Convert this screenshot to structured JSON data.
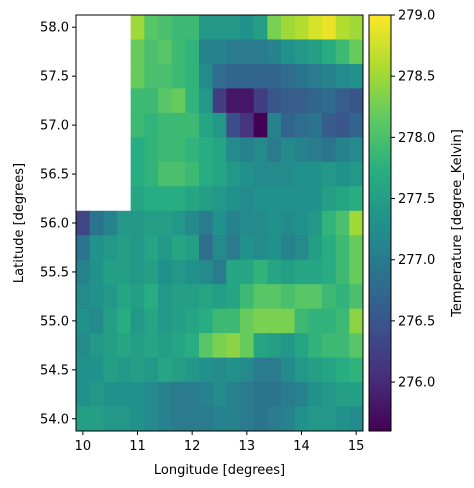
{
  "chart_data": {
    "type": "heatmap",
    "title": "",
    "xlabel": "Longitude [degrees]",
    "ylabel": "Latitude [degrees]",
    "colorbar_label": "Temperature [degree_Kelvin]",
    "colormap": "viridis",
    "xlim": [
      9.875,
      15.125
    ],
    "ylim": [
      53.875,
      58.125
    ],
    "xticks": [
      10,
      11,
      12,
      13,
      14,
      15
    ],
    "yticks": [
      54.0,
      54.5,
      55.0,
      55.5,
      56.0,
      56.5,
      57.0,
      57.5,
      58.0
    ],
    "colorbar_range": [
      275.6,
      279.0
    ],
    "colorbar_ticks": [
      276.0,
      276.5,
      277.0,
      277.5,
      278.0,
      278.5,
      279.0
    ],
    "lon": [
      10.0,
      10.25,
      10.5,
      10.75,
      11.0,
      11.25,
      11.5,
      11.75,
      12.0,
      12.25,
      12.5,
      12.75,
      13.0,
      13.25,
      13.5,
      13.75,
      14.0,
      14.25,
      14.5,
      14.75,
      15.0
    ],
    "lat": [
      58.0,
      57.75,
      57.5,
      57.25,
      57.0,
      56.75,
      56.5,
      56.25,
      56.0,
      55.75,
      55.5,
      55.25,
      55.0,
      54.75,
      54.5,
      54.25,
      54.0
    ],
    "values": [
      [
        null,
        null,
        null,
        null,
        278.5,
        278.1,
        278.0,
        277.9,
        277.9,
        277.4,
        277.4,
        277.4,
        277.3,
        277.5,
        278.3,
        278.5,
        278.6,
        278.8,
        278.9,
        278.6,
        278.5
      ],
      [
        null,
        null,
        null,
        null,
        278.2,
        278.0,
        278.1,
        277.9,
        277.8,
        277.1,
        277.1,
        277.0,
        277.0,
        277.0,
        277.1,
        277.3,
        277.4,
        277.5,
        277.7,
        277.9,
        278.2
      ],
      [
        null,
        null,
        null,
        null,
        278.2,
        278.0,
        278.0,
        277.9,
        277.8,
        277.2,
        276.8,
        276.7,
        276.7,
        276.7,
        276.7,
        276.8,
        276.9,
        277.0,
        277.1,
        277.2,
        277.3
      ],
      [
        null,
        null,
        null,
        null,
        277.9,
        277.9,
        278.1,
        278.2,
        277.8,
        277.4,
        276.2,
        275.8,
        275.8,
        276.2,
        276.5,
        276.6,
        276.6,
        276.7,
        276.8,
        276.6,
        276.5
      ],
      [
        null,
        null,
        null,
        null,
        277.9,
        277.8,
        277.9,
        277.9,
        277.9,
        277.6,
        277.4,
        276.4,
        276.1,
        275.6,
        277.1,
        276.7,
        276.8,
        276.9,
        276.6,
        276.5,
        276.7
      ],
      [
        null,
        null,
        null,
        null,
        277.7,
        277.8,
        277.9,
        277.9,
        277.8,
        277.7,
        277.6,
        277.2,
        277.1,
        277.2,
        277.0,
        277.2,
        277.1,
        277.0,
        276.9,
        277.1,
        277.2
      ],
      [
        null,
        null,
        null,
        null,
        277.7,
        277.8,
        278.0,
        278.0,
        277.9,
        277.7,
        277.6,
        277.4,
        277.3,
        277.2,
        277.2,
        277.2,
        277.3,
        277.3,
        277.4,
        277.3,
        277.4
      ],
      [
        null,
        null,
        null,
        null,
        277.6,
        277.7,
        277.7,
        277.7,
        277.6,
        277.5,
        277.4,
        277.3,
        277.2,
        277.3,
        277.3,
        277.3,
        277.3,
        277.3,
        277.5,
        277.6,
        277.7
      ],
      [
        276.3,
        276.9,
        277.1,
        277.4,
        277.4,
        277.5,
        277.5,
        277.4,
        277.2,
        277.0,
        277.3,
        277.1,
        277.2,
        277.2,
        277.3,
        277.2,
        277.3,
        277.4,
        277.8,
        278.0,
        278.5
      ],
      [
        276.9,
        277.3,
        277.4,
        277.5,
        277.4,
        277.6,
        277.4,
        277.6,
        277.5,
        276.8,
        277.2,
        277.0,
        277.3,
        277.2,
        277.3,
        277.1,
        277.2,
        277.5,
        277.7,
        277.9,
        278.2
      ],
      [
        277.1,
        277.3,
        277.5,
        277.5,
        277.4,
        277.5,
        277.3,
        277.4,
        277.3,
        277.2,
        277.0,
        277.6,
        277.6,
        277.8,
        277.6,
        277.5,
        277.6,
        277.6,
        277.7,
        277.9,
        278.2
      ],
      [
        277.2,
        277.3,
        277.4,
        277.6,
        277.5,
        277.7,
        277.4,
        277.5,
        277.5,
        277.6,
        277.5,
        277.6,
        277.9,
        278.1,
        278.1,
        278.0,
        278.1,
        278.1,
        277.9,
        277.8,
        278.0
      ],
      [
        277.3,
        277.2,
        277.5,
        277.7,
        277.4,
        277.6,
        277.4,
        277.5,
        277.6,
        277.7,
        277.9,
        277.9,
        278.2,
        278.3,
        278.3,
        278.3,
        277.9,
        277.8,
        277.8,
        277.9,
        278.4
      ],
      [
        277.2,
        277.4,
        277.5,
        277.6,
        277.5,
        277.6,
        277.5,
        277.6,
        277.7,
        278.1,
        278.3,
        278.4,
        278.2,
        277.6,
        277.5,
        277.4,
        277.6,
        277.8,
        277.9,
        277.9,
        278.1
      ],
      [
        277.3,
        277.3,
        277.5,
        277.4,
        277.5,
        277.4,
        277.6,
        277.5,
        277.4,
        277.3,
        277.2,
        277.3,
        277.2,
        277.0,
        277.0,
        277.2,
        277.4,
        277.5,
        277.6,
        277.7,
        277.8
      ],
      [
        277.3,
        277.4,
        277.3,
        277.3,
        277.3,
        277.2,
        277.1,
        277.0,
        277.0,
        277.1,
        277.2,
        277.1,
        277.0,
        276.9,
        276.9,
        277.0,
        277.1,
        277.3,
        277.4,
        277.5,
        277.5
      ],
      [
        277.5,
        277.5,
        277.4,
        277.4,
        277.3,
        277.2,
        277.1,
        277.0,
        277.0,
        277.0,
        277.1,
        277.1,
        277.0,
        276.9,
        277.0,
        277.1,
        277.3,
        277.4,
        277.4,
        277.3,
        277.2
      ]
    ]
  }
}
